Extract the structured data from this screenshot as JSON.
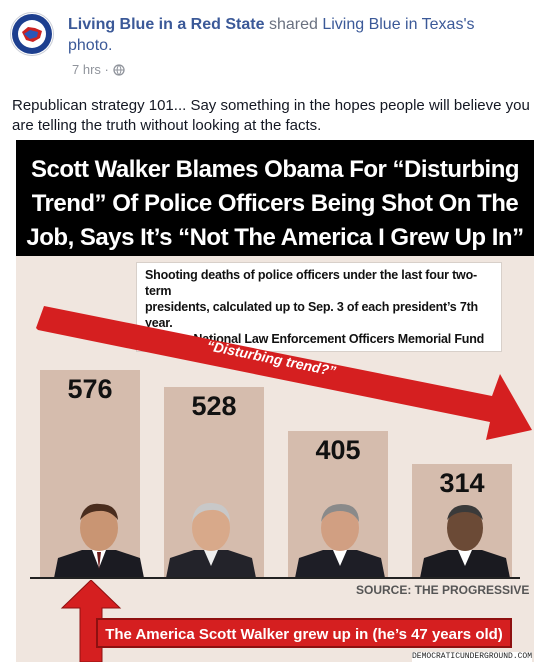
{
  "post": {
    "page_name": "Living Blue in a Red State",
    "shared_word": "shared",
    "source_name": "Living Blue in Texas's",
    "source_type": "photo.",
    "time": "7 hrs",
    "separator": "·",
    "privacy_icon": "globe-icon",
    "text": "Republican strategy 101... Say something in the hopes people will believe you are telling the truth without looking at the facts."
  },
  "image": {
    "headline": [
      "Scott Walker Blames Obama For “Disturbing",
      "Trend” Of Police Officers Being Shot On The",
      "Job, Says It’s “Not The America I Grew Up In”"
    ],
    "note": [
      "Shooting deaths of police officers under the last four two-term",
      "presidents, calculated up to Sep. 3 of each president’s 7th year.",
      "Source: National Law Enforcement Officers Memorial Fund"
    ],
    "arrow_label": "“Disturbing trend?”",
    "source_label": "SOURCE: THE PROGRESSIVE",
    "bottom_label": "The America Scott Walker grew up in (he’s 47 years old)",
    "credit": "DEMOCRATICUNDERGROUND.COM"
  },
  "colors": {
    "link": "#3b5998",
    "banner_bg": "#000000",
    "bar": "#d5bcad",
    "chart_bg": "#f0e6df",
    "red": "#d51f20"
  },
  "chart_data": {
    "type": "bar",
    "categories": [
      "",
      "",
      "",
      ""
    ],
    "values": [
      576,
      528,
      405,
      314
    ],
    "title": "",
    "xlabel": "",
    "ylabel": "",
    "ylim": [
      0,
      620
    ]
  }
}
